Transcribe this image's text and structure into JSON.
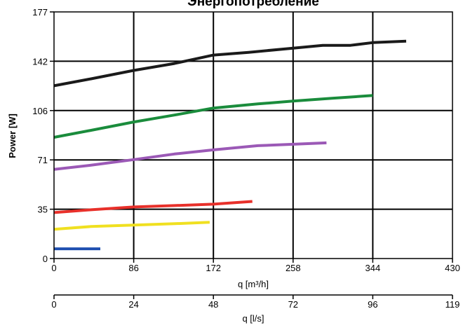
{
  "chart_data": {
    "type": "line",
    "title": "Энергопотребление",
    "ylabel": "Power [W]",
    "xlabel": "q [m³/h]",
    "x2label": "q [l/s]",
    "xlim": [
      0,
      430
    ],
    "ylim": [
      0,
      177
    ],
    "x_ticks": [
      "0",
      "86",
      "172",
      "258",
      "344",
      "430"
    ],
    "x2_ticks": [
      "0",
      "24",
      "48",
      "72",
      "96",
      "119"
    ],
    "y_ticks": [
      "0",
      "35",
      "71",
      "106",
      "142",
      "177"
    ],
    "grid": true,
    "series": [
      {
        "color": "#1a1a1a",
        "x": [
          0,
          40,
          86,
          130,
          172,
          210,
          258,
          290,
          320,
          344,
          380
        ],
        "y": [
          124,
          129,
          135,
          140,
          146,
          148,
          151,
          153,
          153,
          155,
          156
        ]
      },
      {
        "color": "#1a8c3c",
        "x": [
          0,
          40,
          86,
          130,
          172,
          220,
          258,
          300,
          344,
          344
        ],
        "y": [
          87,
          92,
          98,
          103,
          108,
          111,
          113,
          115,
          117,
          117
        ]
      },
      {
        "color": "#9b59b6",
        "x": [
          0,
          40,
          86,
          130,
          172,
          220,
          258,
          294
        ],
        "y": [
          64,
          67,
          71,
          75,
          78,
          81,
          82,
          83
        ]
      },
      {
        "color": "#e8302a",
        "x": [
          0,
          40,
          86,
          130,
          172,
          214
        ],
        "y": [
          33,
          35,
          37,
          38,
          39,
          41
        ]
      },
      {
        "color": "#f0e020",
        "x": [
          0,
          40,
          86,
          130,
          168
        ],
        "y": [
          21,
          23,
          24,
          25,
          26
        ]
      },
      {
        "color": "#1f4fb0",
        "x": [
          0,
          50
        ],
        "y": [
          7,
          7
        ]
      }
    ]
  }
}
